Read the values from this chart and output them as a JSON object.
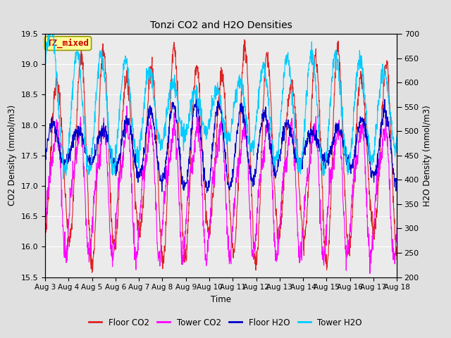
{
  "title": "Tonzi CO2 and H2O Densities",
  "xlabel": "Time",
  "ylabel_left": "CO2 Density (mmol/m3)",
  "ylabel_right": "H2O Density (mmol/m3)",
  "ylim_left": [
    15.5,
    19.5
  ],
  "ylim_right": [
    200,
    700
  ],
  "annotation_text": "TZ_mixed",
  "annotation_color": "#cc0000",
  "annotation_bg": "#ffff99",
  "annotation_edge": "#999900",
  "xtick_labels": [
    "Aug 3",
    "Aug 4",
    "Aug 5",
    "Aug 6",
    "Aug 7",
    "Aug 8",
    "Aug 9",
    "Aug 10",
    "Aug 11",
    "Aug 12",
    "Aug 13",
    "Aug 14",
    "Aug 15",
    "Aug 16",
    "Aug 17",
    "Aug 18"
  ],
  "legend_labels": [
    "Floor CO2",
    "Tower CO2",
    "Floor H2O",
    "Tower H2O"
  ],
  "legend_colors": [
    "#dd2222",
    "#ff00ff",
    "#0000cc",
    "#00ccff"
  ],
  "line_width": 0.8,
  "bg_color": "#e0e0e0",
  "plot_bg_color": "#ebebeb",
  "grid_color": "#ffffff",
  "yticks_left": [
    15.5,
    16.0,
    16.5,
    17.0,
    17.5,
    18.0,
    18.5,
    19.0,
    19.5
  ],
  "yticks_right": [
    200,
    250,
    300,
    350,
    400,
    450,
    500,
    550,
    600,
    650,
    700
  ],
  "days": 15,
  "n_points": 1500,
  "seed": 7
}
